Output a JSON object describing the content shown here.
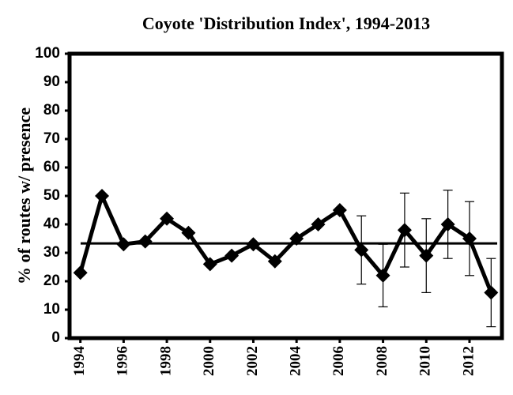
{
  "chart_data": {
    "type": "line",
    "title": "Coyote 'Distribution Index', 1994-2013",
    "y_label": "% of routes w/ presence",
    "x": [
      1994,
      1995,
      1996,
      1997,
      1998,
      1999,
      2000,
      2001,
      2002,
      2003,
      2004,
      2005,
      2006,
      2007,
      2008,
      2009,
      2010,
      2011,
      2012,
      2013
    ],
    "series": [
      {
        "color": "#000000",
        "values": [
          23,
          50,
          33,
          34,
          42,
          37,
          26,
          29,
          33,
          27,
          35,
          40,
          45,
          31,
          22,
          38,
          29,
          40,
          35,
          16
        ],
        "errors": [
          null,
          null,
          null,
          null,
          null,
          null,
          null,
          null,
          null,
          null,
          null,
          null,
          null,
          12,
          11,
          13,
          13,
          12,
          13,
          12
        ]
      }
    ],
    "reference_line": 33.3,
    "xlim": [
      1993.5,
      2013.5
    ],
    "xticks": [
      1994,
      1996,
      1998,
      2000,
      2002,
      2004,
      2006,
      2008,
      2010,
      2012
    ],
    "ylim": [
      0,
      100
    ],
    "yticks": [
      0,
      10,
      20,
      30,
      40,
      50,
      60,
      70,
      80,
      90,
      100
    ],
    "grid": false
  }
}
